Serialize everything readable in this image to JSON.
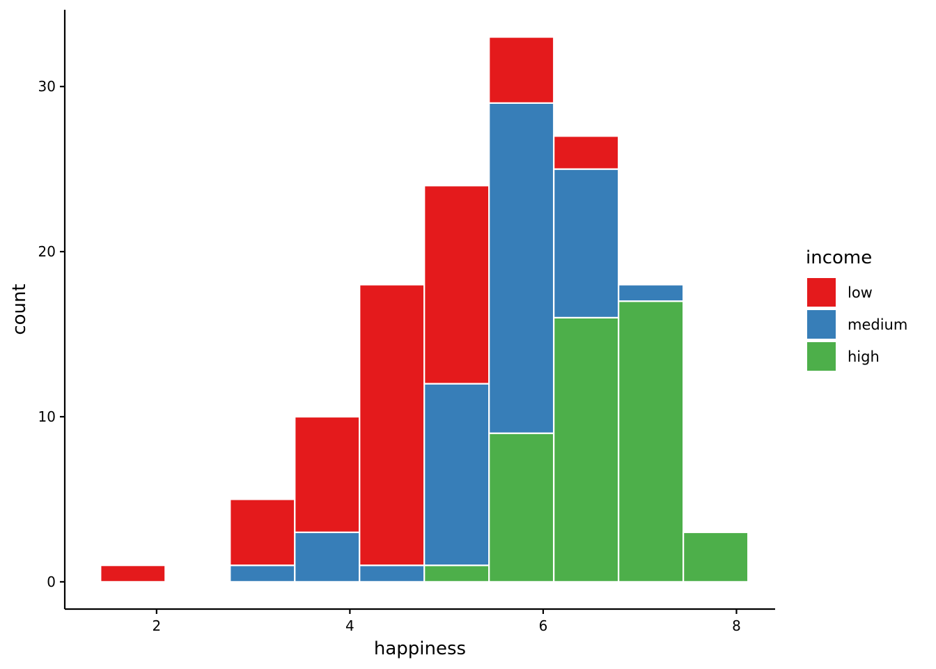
{
  "chart_data": {
    "type": "bar",
    "subtype": "stacked-histogram",
    "title": "",
    "xlabel": "happiness",
    "ylabel": "count",
    "xlim": [
      1.05,
      8.4
    ],
    "ylim": [
      -1.65,
      34.65
    ],
    "xticks": [
      2,
      4,
      6,
      8
    ],
    "yticks": [
      0,
      10,
      20,
      30
    ],
    "grid": false,
    "legend": {
      "title": "income",
      "position": "right"
    },
    "bins": [
      {
        "x0": 1.42,
        "x1": 2.09
      },
      {
        "x0": 2.09,
        "x1": 2.76
      },
      {
        "x0": 2.76,
        "x1": 3.43
      },
      {
        "x0": 3.43,
        "x1": 4.1
      },
      {
        "x0": 4.1,
        "x1": 4.77
      },
      {
        "x0": 4.77,
        "x1": 5.44
      },
      {
        "x0": 5.44,
        "x1": 6.11
      },
      {
        "x0": 6.11,
        "x1": 6.78
      },
      {
        "x0": 6.78,
        "x1": 7.45
      },
      {
        "x0": 7.45,
        "x1": 8.12
      }
    ],
    "series": [
      {
        "name": "low",
        "color": "#E41A1C",
        "values": [
          1,
          0,
          4,
          7,
          17,
          12,
          4,
          2,
          0,
          0
        ]
      },
      {
        "name": "medium",
        "color": "#377EB8",
        "values": [
          0,
          0,
          1,
          3,
          1,
          11,
          20,
          9,
          1,
          0
        ]
      },
      {
        "name": "high",
        "color": "#4DAF4A",
        "values": [
          0,
          0,
          0,
          0,
          0,
          1,
          9,
          16,
          17,
          3
        ]
      }
    ],
    "stack_order_bottom_to_top": [
      "high",
      "medium",
      "low"
    ]
  }
}
